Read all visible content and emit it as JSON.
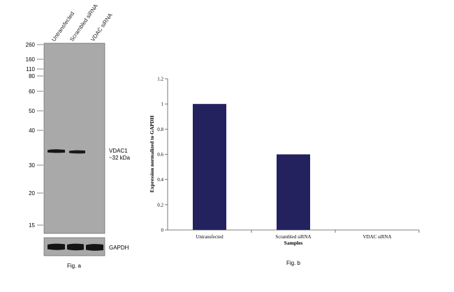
{
  "blot": {
    "lanes": [
      "Untransfected",
      "Scrambled siRNA",
      "VDAC siRNA"
    ],
    "markers": [
      "260",
      "160",
      "110",
      "80",
      "60",
      "50",
      "40",
      "30",
      "20",
      "15"
    ],
    "band_label": "VDAC1",
    "band_size": "~32 kDa",
    "loading_control": "GAPDH",
    "caption": "Fig. a",
    "colors": {
      "membrane": "#a9a9a9",
      "band": "#141414"
    }
  },
  "chart_data": {
    "type": "bar",
    "categories": [
      "Untransfected",
      "Scrambled siRNA",
      "VDAC siRNA"
    ],
    "values": [
      1.0,
      0.6,
      0.0
    ],
    "ylabel": "Expression normalized to GAPDH",
    "xlabel": "Samples",
    "ylim": [
      0,
      1.2
    ],
    "yticks": [
      "0",
      "0.2",
      "0.4",
      "0.6",
      "0.8",
      "1",
      "1.2"
    ],
    "bar_color": "#24215f",
    "grid": false,
    "caption": "Fig. b"
  }
}
